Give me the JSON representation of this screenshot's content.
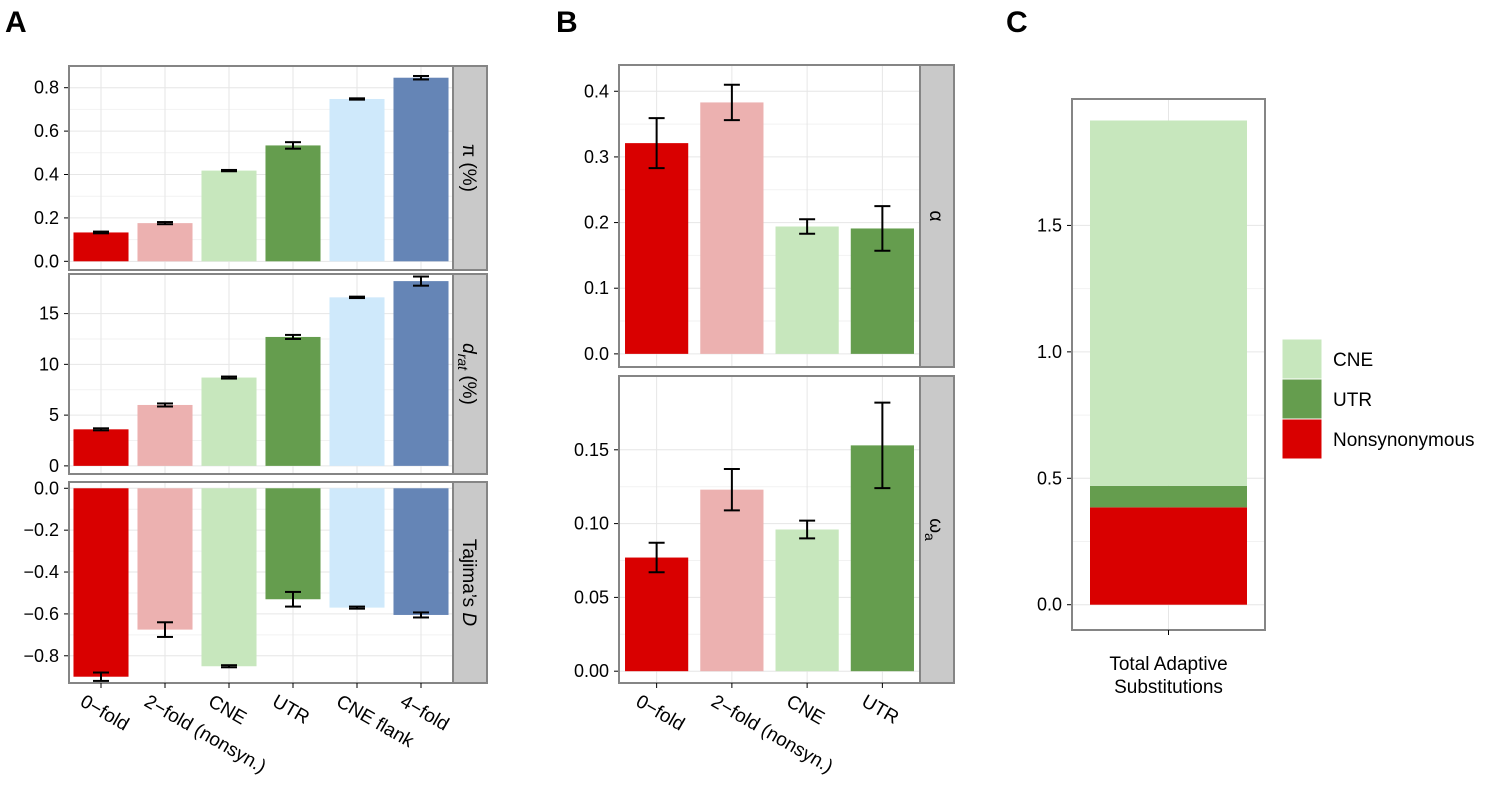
{
  "panel_letters": {
    "a": "A",
    "b": "B",
    "c": "C"
  },
  "colors": {
    "0-fold": "#d90000",
    "2-fold": "#ecb1b0",
    "CNE": "#c7e7bd",
    "UTR": "#659d4e",
    "CNE flank": "#cfe9fb",
    "4-fold": "#6585b6",
    "strip": "#c9c9c9",
    "panel_border": "#858585",
    "grid": "#e6e6e6"
  },
  "chart_data": [
    {
      "id": "A",
      "type": "bar",
      "categories": [
        "0−fold",
        "2−fold (nonsyn.)",
        "CNE",
        "UTR",
        "CNE flank",
        "4−fold"
      ],
      "color_keys": [
        "0-fold",
        "2-fold",
        "CNE",
        "UTR",
        "CNE flank",
        "4-fold"
      ],
      "facets": [
        {
          "strip": "π (%)",
          "ylim": [
            -0.04,
            0.9
          ],
          "yticks": [
            0.0,
            0.2,
            0.4,
            0.6,
            0.8
          ],
          "tick_labels": [
            "0.0",
            "0.2",
            "0.4",
            "0.6",
            "0.8"
          ],
          "values": [
            0.133,
            0.176,
            0.418,
            0.534,
            0.748,
            0.846
          ],
          "errors": [
            0.004,
            0.005,
            0.003,
            0.015,
            0.003,
            0.008
          ]
        },
        {
          "strip": "d",
          "strip_sub": "rat",
          "strip_suffix": " (%)",
          "ylim": [
            -0.8,
            18.9
          ],
          "yticks": [
            0,
            5,
            10,
            15
          ],
          "tick_labels": [
            "0",
            "5",
            "10",
            "15"
          ],
          "values": [
            3.6,
            6.0,
            8.7,
            12.7,
            16.6,
            18.2
          ],
          "errors": [
            0.1,
            0.15,
            0.1,
            0.2,
            0.07,
            0.45
          ]
        },
        {
          "strip": "Tajima’s ",
          "strip_italic": "D",
          "ylim": [
            -0.93,
            0.03
          ],
          "yticks": [
            0.0,
            -0.2,
            -0.4,
            -0.6,
            -0.8
          ],
          "tick_labels": [
            "0.0",
            "−0.2",
            "−0.4",
            "−0.6",
            "−0.8"
          ],
          "values": [
            -0.9,
            -0.675,
            -0.85,
            -0.53,
            -0.57,
            -0.605
          ],
          "errors": [
            0.02,
            0.035,
            0.005,
            0.035,
            0.005,
            0.012
          ]
        }
      ]
    },
    {
      "id": "B",
      "type": "bar",
      "categories": [
        "0−fold",
        "2−fold (nonsyn.)",
        "CNE",
        "UTR"
      ],
      "color_keys": [
        "0-fold",
        "2-fold",
        "CNE",
        "UTR"
      ],
      "facets": [
        {
          "strip": "α",
          "ylim": [
            -0.02,
            0.44
          ],
          "yticks": [
            0.0,
            0.1,
            0.2,
            0.3,
            0.4
          ],
          "tick_labels": [
            "0.0",
            "0.1",
            "0.2",
            "0.3",
            "0.4"
          ],
          "values": [
            0.321,
            0.383,
            0.194,
            0.191
          ],
          "errors": [
            0.038,
            0.027,
            0.011,
            0.034
          ]
        },
        {
          "strip": "ω",
          "strip_sub": "a",
          "ylim": [
            -0.008,
            0.2
          ],
          "yticks": [
            0.0,
            0.05,
            0.1,
            0.15
          ],
          "tick_labels": [
            "0.00",
            "0.05",
            "0.10",
            "0.15"
          ],
          "values": [
            0.077,
            0.123,
            0.096,
            0.153
          ],
          "errors": [
            0.01,
            0.014,
            0.006,
            0.029
          ]
        }
      ]
    },
    {
      "id": "C",
      "type": "stacked-bar",
      "categories": [
        "Total Adaptive Substitutions"
      ],
      "category_lines": [
        "Total Adaptive",
        "Substitutions"
      ],
      "ylim": [
        -0.1,
        2.0
      ],
      "yticks": [
        0.0,
        0.5,
        1.0,
        1.5
      ],
      "tick_labels": [
        "0.0",
        "0.5",
        "1.0",
        "1.5"
      ],
      "series": [
        {
          "name": "Nonsynonymous",
          "value": 0.385,
          "color_key": "0-fold"
        },
        {
          "name": "UTR",
          "value": 0.085,
          "color_key": "UTR"
        },
        {
          "name": "CNE",
          "value": 1.445,
          "color_key": "CNE"
        }
      ],
      "legend": [
        "CNE",
        "UTR",
        "Nonsynonymous"
      ],
      "legend_position": "right"
    }
  ]
}
